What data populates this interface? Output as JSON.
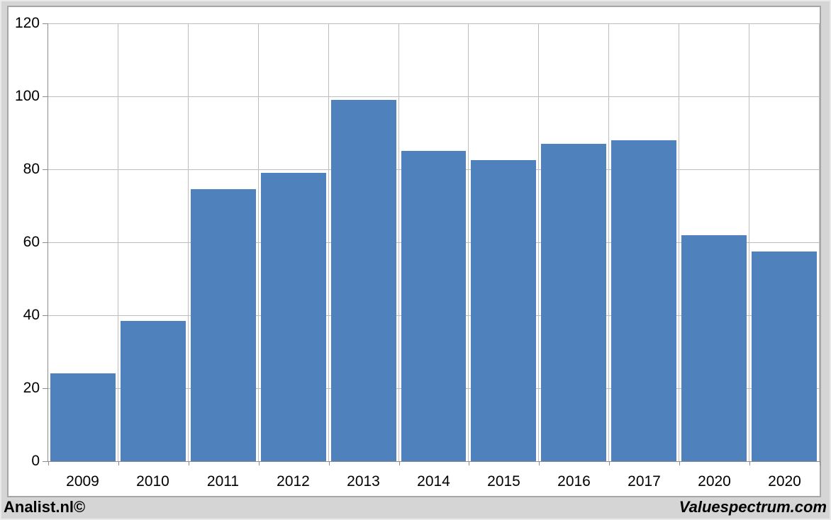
{
  "chart_data": {
    "type": "bar",
    "categories": [
      "2009",
      "2010",
      "2011",
      "2012",
      "2013",
      "2014",
      "2015",
      "2016",
      "2017",
      "2020",
      "2020"
    ],
    "values": [
      24,
      38.5,
      74.5,
      79,
      99,
      85,
      82.5,
      87,
      88,
      62,
      57.5
    ],
    "title": "",
    "xlabel": "",
    "ylabel": "",
    "ylim": [
      0,
      120
    ],
    "yticks": [
      0,
      20,
      40,
      60,
      80,
      100,
      120
    ],
    "grid": true,
    "legend_position": "none",
    "bar_color": "#4f81bd",
    "gridline_color": "#bdbdbd",
    "axis_color": "#8c8c8c",
    "plot_background": "#ffffff",
    "page_background": "#d5d5d5"
  },
  "footer": {
    "left_text": "Analist.nl©",
    "right_text": "Valuespectrum.com"
  }
}
